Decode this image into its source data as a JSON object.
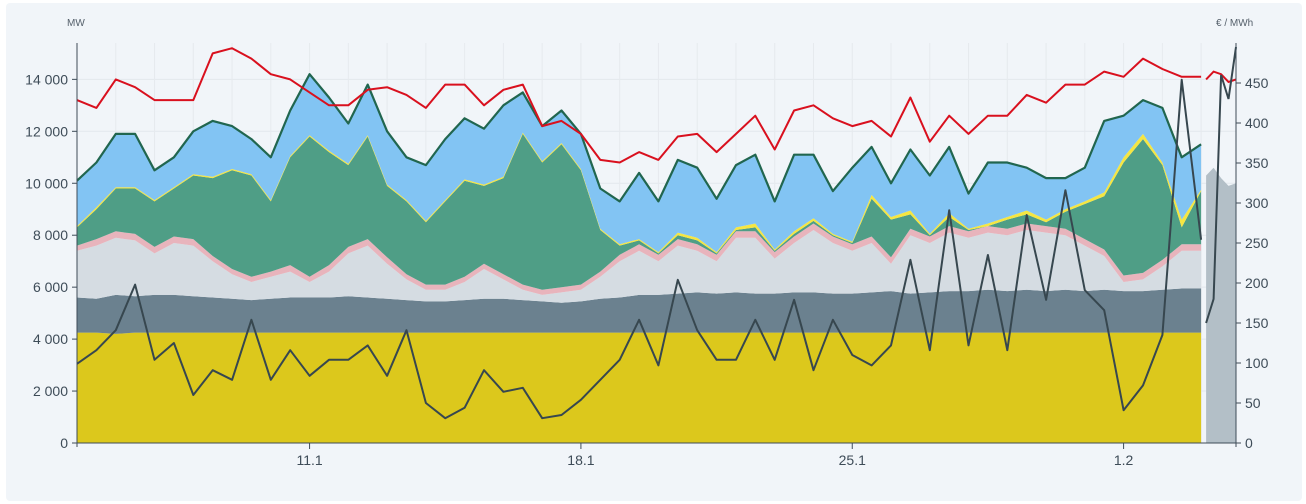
{
  "chart_data": {
    "type": "area",
    "left_axis": {
      "unit": "MW",
      "ylim": [
        0,
        15400
      ],
      "ticks": [
        0,
        2000,
        4000,
        6000,
        8000,
        10000,
        12000,
        14000
      ],
      "tick_labels": [
        "0",
        "2 000",
        "4 000",
        "6 000",
        "8 000",
        "10 000",
        "12 000",
        "14 000"
      ]
    },
    "right_axis": {
      "unit": "€ / MWh",
      "ylim": [
        0,
        500
      ],
      "ticks": [
        0,
        50,
        100,
        150,
        200,
        250,
        300,
        350,
        400,
        450
      ],
      "tick_labels": [
        "0",
        "50",
        "100",
        "150",
        "200",
        "250",
        "300",
        "350",
        "400",
        "450"
      ]
    },
    "x": {
      "step_days": 0.5,
      "span_days": 29.9,
      "ticks_days": [
        6,
        13,
        20,
        27
      ],
      "tick_labels": [
        "11.1",
        "18.1",
        "25.1",
        "1.2"
      ]
    },
    "grid": true,
    "stack_tops_mw": {
      "yellow": [
        4250,
        4250,
        4200,
        4250,
        4250,
        4250,
        4250,
        4250,
        4250,
        4250,
        4250,
        4250,
        4250,
        4250,
        4250,
        4250,
        4250,
        4250,
        4250,
        4250,
        4250,
        4250,
        4250,
        4250,
        4250,
        4250,
        4250,
        4250,
        4250,
        4250,
        4250,
        4250,
        4250,
        4250,
        4250,
        4250,
        4250,
        4250,
        4250,
        4250,
        4250,
        4250,
        4250,
        4250,
        4250,
        4250,
        4250,
        4250,
        4250,
        4250,
        4250,
        4250,
        4250,
        4250,
        4250,
        4250,
        4250,
        4250,
        4250
      ],
      "darkgray": [
        5600,
        5550,
        5700,
        5650,
        5700,
        5700,
        5650,
        5600,
        5550,
        5500,
        5550,
        5600,
        5600,
        5600,
        5650,
        5600,
        5550,
        5500,
        5450,
        5450,
        5500,
        5550,
        5550,
        5500,
        5450,
        5400,
        5450,
        5550,
        5600,
        5700,
        5700,
        5750,
        5800,
        5750,
        5800,
        5750,
        5750,
        5800,
        5800,
        5750,
        5750,
        5800,
        5850,
        5750,
        5800,
        5850,
        5850,
        5900,
        5850,
        5900,
        5850,
        5900,
        5850,
        5900,
        5850,
        5850,
        5900,
        5950,
        5950
      ],
      "lightgray": [
        7400,
        7600,
        7900,
        7800,
        7300,
        7700,
        7600,
        7000,
        6500,
        6200,
        6400,
        6600,
        6200,
        6600,
        7300,
        7600,
        6900,
        6300,
        5900,
        5900,
        6200,
        6700,
        6300,
        5900,
        5700,
        5800,
        5900,
        6400,
        7000,
        7400,
        7000,
        7600,
        7400,
        7000,
        7900,
        7900,
        7100,
        7700,
        8200,
        7700,
        7400,
        7700,
        6900,
        8000,
        7700,
        8100,
        7900,
        8100,
        8000,
        8200,
        8100,
        8000,
        7600,
        7200,
        6200,
        6300,
        6800,
        7400,
        7400
      ],
      "pink": [
        7600,
        7850,
        8150,
        8050,
        7550,
        7950,
        7850,
        7200,
        6700,
        6400,
        6600,
        6850,
        6400,
        6850,
        7550,
        7850,
        7150,
        6500,
        6100,
        6100,
        6400,
        6900,
        6500,
        6100,
        5900,
        6000,
        6100,
        6600,
        7250,
        7650,
        7250,
        7850,
        7650,
        7250,
        8150,
        8150,
        7350,
        7950,
        8450,
        7950,
        7650,
        7950,
        7150,
        8250,
        7950,
        8350,
        8150,
        8350,
        8250,
        8450,
        8350,
        8250,
        7850,
        7450,
        6450,
        6550,
        7050,
        7650,
        7650
      ],
      "green": [
        8300,
        9000,
        9800,
        9800,
        9300,
        9800,
        10300,
        10200,
        10500,
        10300,
        9300,
        11000,
        11800,
        11200,
        10700,
        11800,
        9900,
        9300,
        8500,
        9300,
        10100,
        9900,
        10200,
        11900,
        10800,
        11500,
        10500,
        8200,
        7600,
        7800,
        7300,
        8000,
        7800,
        7300,
        8200,
        8300,
        7400,
        8050,
        8550,
        8000,
        7700,
        9400,
        8600,
        8800,
        8000,
        8700,
        8200,
        8350,
        8600,
        8800,
        8500,
        8900,
        9200,
        9500,
        10800,
        11700,
        10700,
        8300,
        9700
      ],
      "solar": [
        8350,
        9080,
        9850,
        9850,
        9350,
        9850,
        10350,
        10250,
        10550,
        10350,
        9350,
        11050,
        11850,
        11250,
        10750,
        11850,
        9950,
        9350,
        8550,
        9350,
        10150,
        9950,
        10250,
        11950,
        10850,
        11550,
        10550,
        8250,
        7650,
        7850,
        7350,
        8100,
        7900,
        7350,
        8300,
        8450,
        7450,
        8150,
        8650,
        8050,
        7750,
        9550,
        8700,
        8950,
        8050,
        8850,
        8250,
        8450,
        8700,
        8950,
        8600,
        9000,
        9300,
        9650,
        11000,
        11900,
        10800,
        8600,
        9750
      ],
      "blue": [
        10100,
        10800,
        11900,
        11900,
        10500,
        11000,
        12000,
        12400,
        12200,
        11700,
        11000,
        12800,
        14200,
        13300,
        12300,
        13800,
        12000,
        11000,
        10700,
        11700,
        12500,
        12100,
        13000,
        13500,
        12200,
        12800,
        11900,
        9800,
        9300,
        10400,
        9300,
        10900,
        10600,
        9400,
        10700,
        11100,
        9300,
        11100,
        11100,
        9700,
        10600,
        11400,
        10000,
        11300,
        10300,
        11400,
        9600,
        10800,
        10800,
        10600,
        10200,
        10200,
        10600,
        12400,
        12600,
        13200,
        12900,
        11000,
        11500
      ]
    },
    "consumption_mw": [
      13200,
      12900,
      14000,
      13700,
      13200,
      13200,
      13200,
      15000,
      15200,
      14800,
      14200,
      14000,
      13500,
      13000,
      13000,
      13600,
      13700,
      13400,
      12900,
      13800,
      13800,
      13000,
      13600,
      13800,
      12200,
      12400,
      11900,
      10900,
      10800,
      11200,
      10900,
      11800,
      11900,
      11200,
      11900,
      12600,
      11300,
      12800,
      13000,
      12500,
      12200,
      12400,
      11800,
      13300,
      11600,
      12600,
      11900,
      12600,
      12600,
      13400,
      13100,
      13800,
      13800,
      14300,
      14100,
      14800,
      14400,
      14100,
      14100
    ],
    "price_eur_mwh": [
      99,
      116,
      141,
      198,
      104,
      125,
      60,
      91,
      79,
      154,
      79,
      116,
      84,
      104,
      104,
      122,
      84,
      141,
      50,
      31,
      44,
      91,
      64,
      69,
      31,
      35,
      54,
      79,
      104,
      154,
      97,
      204,
      141,
      104,
      104,
      154,
      104,
      179,
      91,
      154,
      110,
      97,
      122,
      229,
      116,
      291,
      122,
      235,
      116,
      285,
      179,
      316,
      191,
      166,
      41,
      72,
      135,
      454,
      254
    ],
    "forecast": {
      "total_mw": [
        10300,
        10600,
        10200,
        9900,
        10000
      ],
      "consumption_mw": [
        14000,
        14300,
        14200,
        13900,
        14000
      ],
      "price_eur_mwh": [
        150,
        180,
        460,
        430,
        495
      ]
    },
    "colors": {
      "yellow": "#dcc81c",
      "darkgray": "#6b818f",
      "lightgray": "#d5dce2",
      "pink": "#e8b4bc",
      "green": "#4f9e86",
      "solar": "#f5e642",
      "blue": "#82c4f3",
      "total_line": "#21664f",
      "consumption_line": "#d9101e",
      "price_line": "#37474f",
      "forecast": "#b3bfc7"
    }
  }
}
